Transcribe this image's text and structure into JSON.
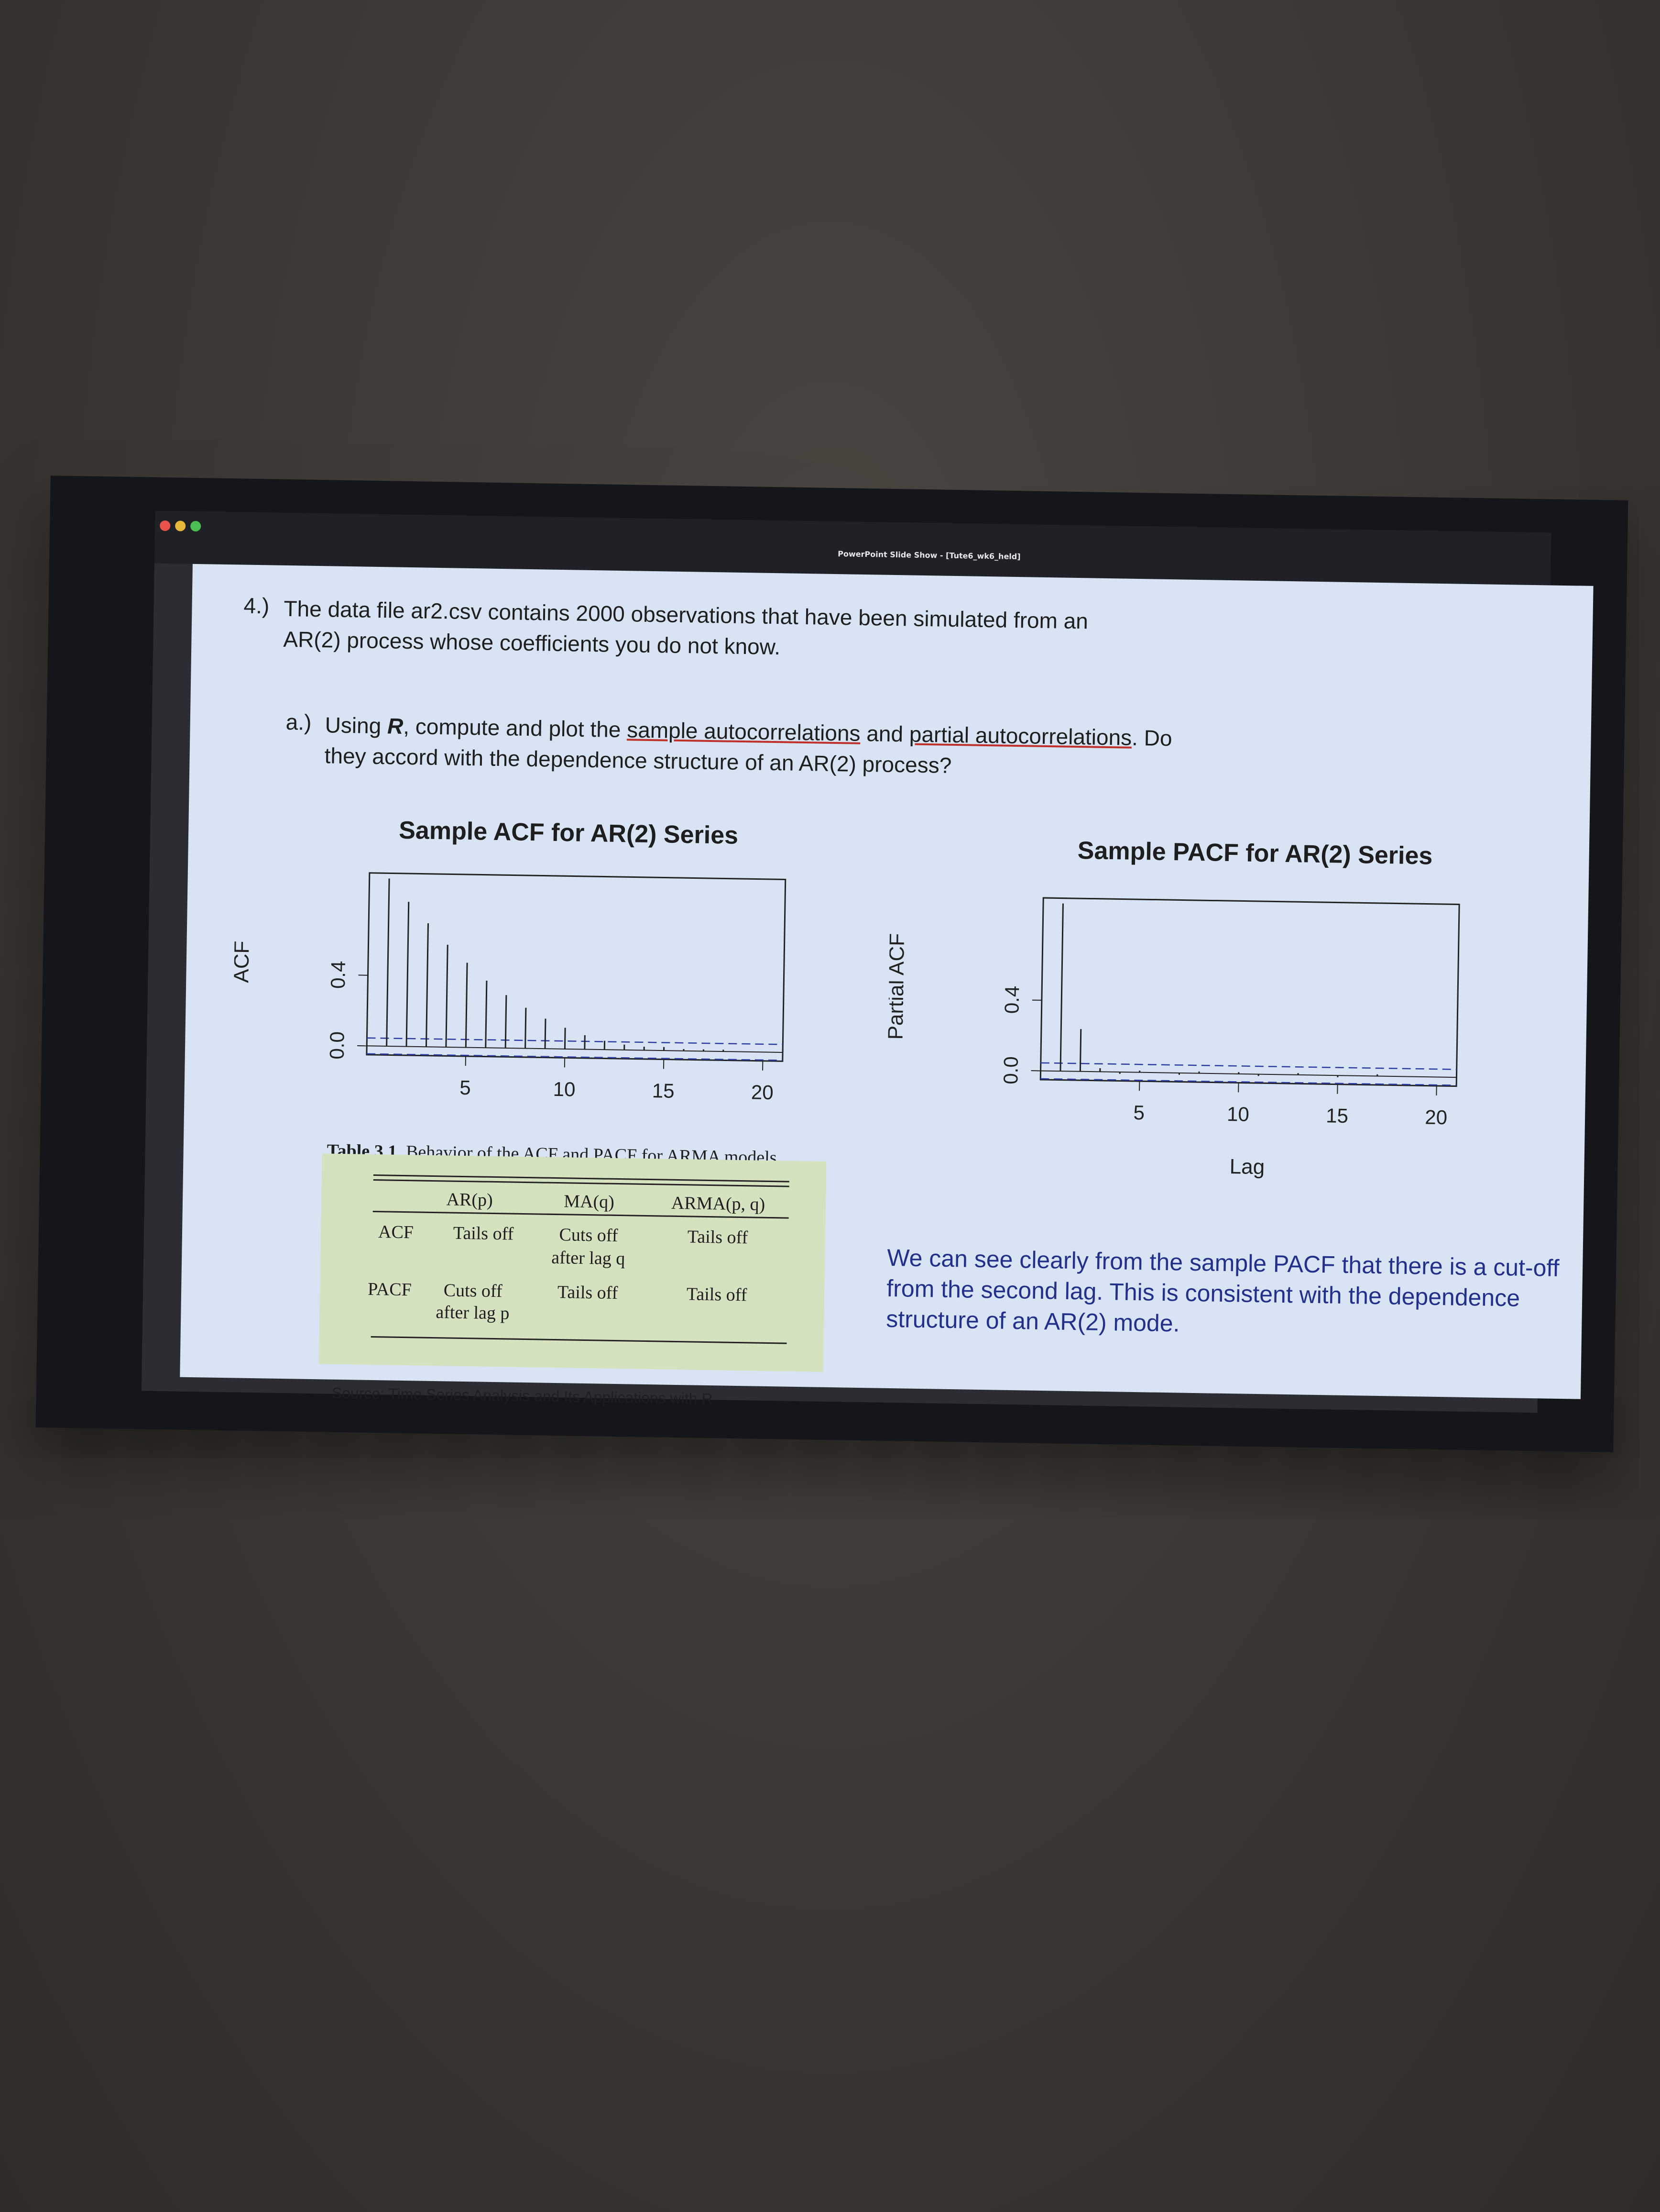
{
  "window": {
    "title": "PowerPoint Slide Show - [Tute6_wk6_held]"
  },
  "slide": {
    "question_number": "4.)",
    "question_text": "The data file ar2.csv contains 2000 observations that have been simulated from an AR(2) process whose coefficients you do not know.",
    "part_label": "a.)",
    "part_pre": "Using ",
    "part_r": "R",
    "part_mid1": ", compute and plot the ",
    "part_link1": "sample autocorrelations",
    "part_mid2": " and ",
    "part_link2": "partial autocorrelations",
    "part_post": ". Do they accord with the dependence structure of an AR(2) process?",
    "table": {
      "caption_bold": "Table 3.1.",
      "caption_rest": " Behavior of the ACF and PACF for ARMA models",
      "col_headers": [
        "AR(p)",
        "MA(q)",
        "ARMA(p, q)"
      ],
      "rows": [
        {
          "label": "ACF",
          "cells": [
            "Tails off",
            "Cuts off",
            "Tails off"
          ],
          "sub": [
            "",
            "after lag q",
            ""
          ]
        },
        {
          "label": "PACF",
          "cells": [
            "Cuts off",
            "Tails off",
            "Tails off"
          ],
          "sub": [
            "after lag p",
            "",
            ""
          ]
        }
      ]
    },
    "source": "Source: Time Series Analysis and Its Applications with R",
    "conclusion": "We can see clearly from the sample PACF that there is a cut-off from the second lag. This is consistent with the dependence structure of an AR(2) mode."
  },
  "chart_data": [
    {
      "type": "bar",
      "title": "Sample ACF for AR(2) Series",
      "ylabel": "ACF",
      "xlabel": "",
      "x_ticks": [
        5,
        10,
        15,
        20
      ],
      "y_ticks": [
        "0.0",
        "0.4"
      ],
      "ylim": [
        -0.05,
        0.98
      ],
      "xlim": [
        0,
        21
      ],
      "conf_bound": 0.045,
      "x": [
        1,
        2,
        3,
        4,
        5,
        6,
        7,
        8,
        9,
        10,
        11,
        12,
        13,
        14,
        15,
        16,
        17,
        18,
        19,
        20
      ],
      "values": [
        0.95,
        0.82,
        0.7,
        0.58,
        0.48,
        0.38,
        0.3,
        0.23,
        0.17,
        0.12,
        0.08,
        0.05,
        0.03,
        0.02,
        0.02,
        0.01,
        0.01,
        0.01,
        0.0,
        0.0
      ]
    },
    {
      "type": "bar",
      "title": "Sample PACF for AR(2) Series",
      "ylabel": "Partial ACF",
      "xlabel": "Lag",
      "x_ticks": [
        5,
        10,
        15,
        20
      ],
      "y_ticks": [
        "0.0",
        "0.4"
      ],
      "ylim": [
        -0.05,
        0.98
      ],
      "xlim": [
        0,
        21
      ],
      "conf_bound": 0.045,
      "x": [
        1,
        2,
        3,
        4,
        5,
        6,
        7,
        8,
        9,
        10,
        11,
        12,
        13,
        14,
        15,
        16,
        17,
        18,
        19,
        20
      ],
      "values": [
        0.95,
        0.24,
        0.02,
        -0.01,
        0.01,
        0.0,
        -0.01,
        0.01,
        0.0,
        0.01,
        -0.01,
        0.0,
        0.01,
        0.0,
        -0.01,
        0.0,
        0.01,
        0.0,
        0.0,
        0.0
      ]
    }
  ]
}
